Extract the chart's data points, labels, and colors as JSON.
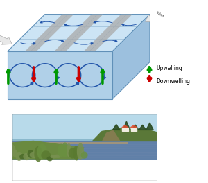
{
  "fig_width": 3.0,
  "fig_height": 2.64,
  "dpi": 100,
  "top_panel": {
    "top_face_color": "#cce4f5",
    "front_face_color": "#b0d0e8",
    "side_face_color": "#9cc0de",
    "box_edge_color": "#6090b8",
    "gray_stripe_color": "#aaaaaa",
    "arrow_color": "#2255aa",
    "upwell_color": "#009900",
    "downwell_color": "#cc0000",
    "legend_upwell": "Upwelling",
    "legend_downwell": "Downwelling",
    "legend_fontsize": 5.5
  }
}
